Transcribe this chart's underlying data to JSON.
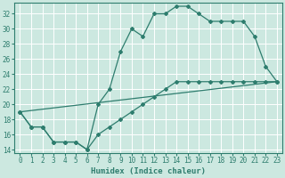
{
  "xlabel": "Humidex (Indice chaleur)",
  "bg_color": "#cce8e0",
  "grid_color": "#ffffff",
  "line_color": "#2e7d6e",
  "xlim": [
    -0.5,
    23.5
  ],
  "ylim": [
    13.5,
    33.5
  ],
  "xticks": [
    0,
    1,
    2,
    3,
    4,
    5,
    6,
    7,
    8,
    9,
    10,
    11,
    12,
    13,
    14,
    15,
    16,
    17,
    18,
    19,
    20,
    21,
    22,
    23
  ],
  "yticks": [
    14,
    16,
    18,
    20,
    22,
    24,
    26,
    28,
    30,
    32
  ],
  "curve1_x": [
    0,
    1,
    2,
    3,
    4,
    5,
    6,
    7,
    8,
    9,
    10,
    11,
    12,
    13,
    14,
    15,
    16,
    17,
    18,
    19,
    20,
    21,
    22,
    23
  ],
  "curve1_y": [
    19,
    17,
    17,
    15,
    15,
    15,
    14,
    20,
    22,
    27,
    30,
    29,
    32,
    32,
    33,
    33,
    32,
    31,
    31,
    31,
    31,
    29,
    25,
    23
  ],
  "curve2_x": [
    0,
    1,
    2,
    3,
    4,
    5,
    6,
    7,
    8,
    9,
    10,
    11,
    12,
    13,
    14,
    15,
    16,
    17,
    18,
    19,
    20,
    21,
    22,
    23
  ],
  "curve2_y": [
    19,
    17,
    17,
    15,
    15,
    15,
    14,
    16,
    17,
    18,
    19,
    20,
    21,
    22,
    23,
    23,
    23,
    23,
    23,
    23,
    23,
    23,
    23,
    23
  ],
  "curve3_x": [
    0,
    23
  ],
  "curve3_y": [
    19,
    23
  ]
}
